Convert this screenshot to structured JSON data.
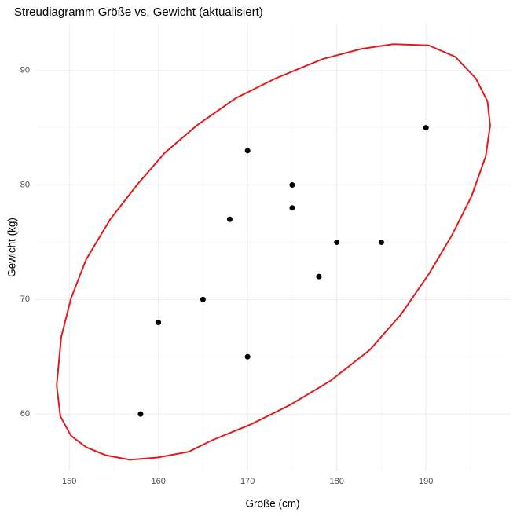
{
  "chart_data": {
    "type": "scatter",
    "title": "Streudiagramm Größe vs. Gewicht (aktualisiert)",
    "x_label": "Größe (cm)",
    "y_label": "Gewicht (kg)",
    "series": [
      {
        "color": "#000000",
        "x": [
          158,
          160,
          165,
          168,
          170,
          170,
          175,
          175,
          178,
          180,
          185,
          190
        ],
        "values": [
          60,
          68,
          70,
          77,
          83,
          65,
          80,
          78,
          72,
          75,
          75,
          85
        ]
      }
    ],
    "ellipse": {
      "color": "#e31a1c",
      "x": [
        148.6,
        149.1,
        150.2,
        151.9,
        154.6,
        157.7,
        160.7,
        164.3,
        168.7,
        173.1,
        178.4,
        182.8,
        186.3,
        190.3,
        193.3,
        195.6,
        196.9,
        197.2,
        196.7,
        195.1,
        192.9,
        190.3,
        187.2,
        183.7,
        179.3,
        174.8,
        170.4,
        166.0,
        163.4,
        159.9,
        156.8,
        154.1,
        151.9,
        150.2,
        149.0,
        148.6
      ],
      "values": [
        62.5,
        66.7,
        70.1,
        73.5,
        77.0,
        80.1,
        82.8,
        85.2,
        87.6,
        89.3,
        91.0,
        91.9,
        92.3,
        92.2,
        91.2,
        89.3,
        87.3,
        85.2,
        82.5,
        79.0,
        75.6,
        72.2,
        68.7,
        65.6,
        62.9,
        60.8,
        59.1,
        57.7,
        56.7,
        56.2,
        56.0,
        56.4,
        57.1,
        58.1,
        59.8,
        62.5
      ]
    },
    "xlim": [
      146.2,
      199.5
    ],
    "ylim": [
      55.0,
      94.1
    ],
    "xticks": [
      150,
      160,
      170,
      180,
      190
    ],
    "yticks": [
      60,
      70,
      80,
      90
    ],
    "grid": true
  }
}
